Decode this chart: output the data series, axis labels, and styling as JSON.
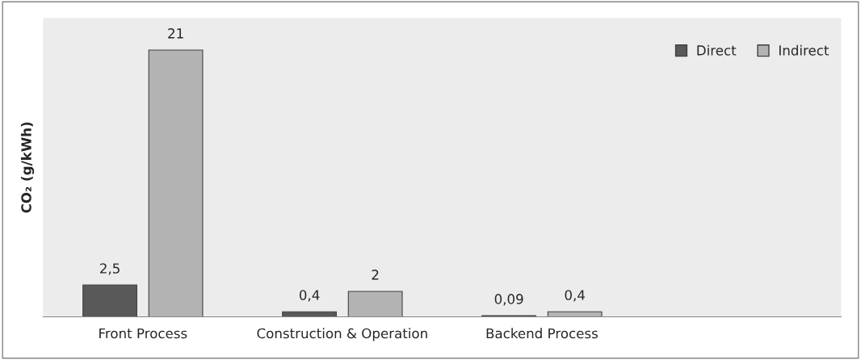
{
  "chart_data": {
    "type": "bar",
    "ylabel": "CO₂ (g/kWh)",
    "categories": [
      "Front Process",
      "Construction & Operation",
      "Backend Process",
      null
    ],
    "series": [
      {
        "name": "Direct",
        "color": "#595959",
        "values": [
          2.5,
          0.4,
          0.09,
          null
        ],
        "value_labels": [
          "2,5",
          "0,4",
          "0,09",
          null
        ]
      },
      {
        "name": "Indirect",
        "color": "#b3b3b3",
        "values": [
          21,
          2,
          0.4,
          null
        ],
        "value_labels": [
          "21",
          "2",
          "0,4",
          null
        ]
      }
    ],
    "legend": "top right",
    "grid": false
  }
}
